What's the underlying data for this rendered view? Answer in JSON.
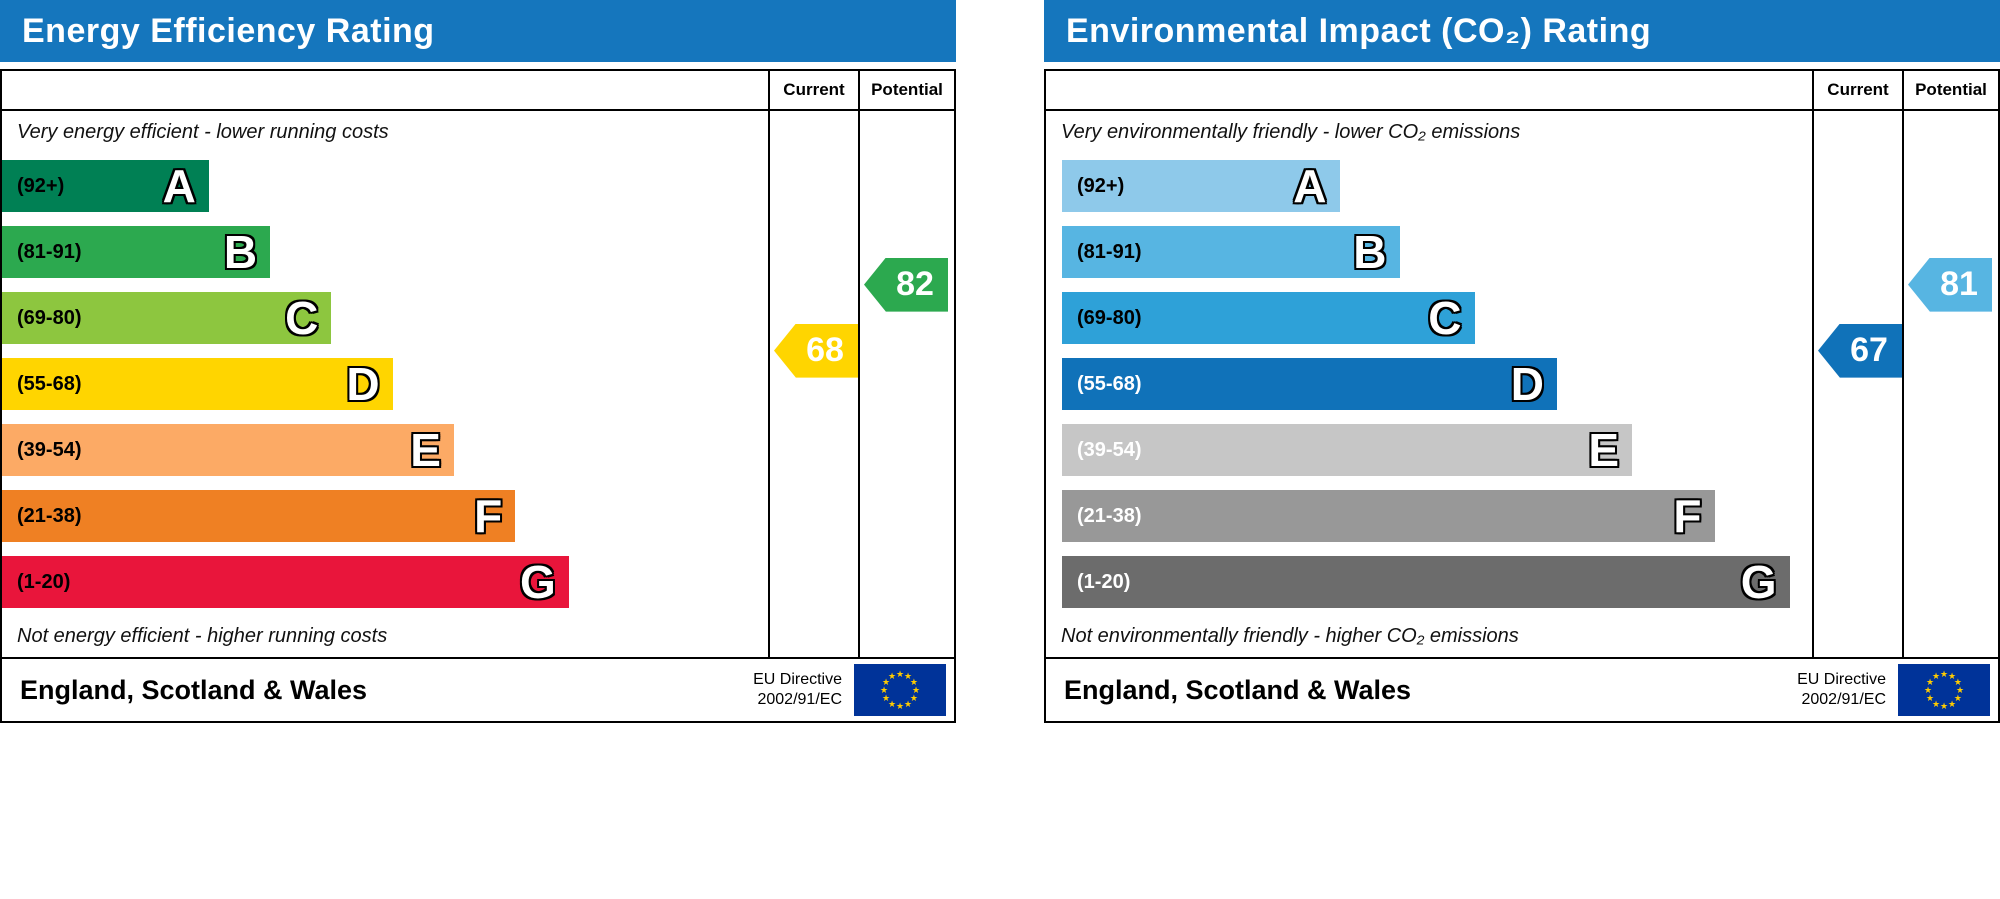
{
  "chart_data": [
    {
      "type": "bar",
      "chart": "energy-efficiency",
      "title": "Energy Efficiency Rating",
      "columns": [
        "Current",
        "Potential"
      ],
      "top_note": "Very energy efficient - lower running costs",
      "bottom_note": "Not energy efficient - higher running costs",
      "bands": [
        {
          "letter": "A",
          "range": "(92+)",
          "min": 92,
          "max": 100,
          "color": "#008054",
          "label_color": "#000000",
          "width": "27%"
        },
        {
          "letter": "B",
          "range": "(81-91)",
          "min": 81,
          "max": 91,
          "color": "#2ca94f",
          "label_color": "#000000",
          "width": "35%"
        },
        {
          "letter": "C",
          "range": "(69-80)",
          "min": 69,
          "max": 80,
          "color": "#8dc63f",
          "label_color": "#000000",
          "width": "43%"
        },
        {
          "letter": "D",
          "range": "(55-68)",
          "min": 55,
          "max": 68,
          "color": "#ffd500",
          "label_color": "#000000",
          "width": "51%"
        },
        {
          "letter": "E",
          "range": "(39-54)",
          "min": 39,
          "max": 54,
          "color": "#fcaa65",
          "label_color": "#000000",
          "width": "59%"
        },
        {
          "letter": "F",
          "range": "(21-38)",
          "min": 21,
          "max": 38,
          "color": "#ef8023",
          "label_color": "#000000",
          "width": "67%"
        },
        {
          "letter": "G",
          "range": "(1-20)",
          "min": 1,
          "max": 20,
          "color": "#e9153b",
          "label_color": "#000000",
          "width": "74%"
        }
      ],
      "current": {
        "value": 68,
        "band": "D",
        "color": "#ffd500",
        "row": 2.6
      },
      "potential": {
        "value": 82,
        "band": "B",
        "color": "#2ca94f",
        "row": 1.6
      },
      "footer": {
        "region": "England, Scotland & Wales",
        "directive_line1": "EU Directive",
        "directive_line2": "2002/91/EC",
        "flag_icon": "eu-flag"
      }
    },
    {
      "type": "bar",
      "chart": "environmental-impact-co2",
      "title": "Environmental Impact (CO₂) Rating",
      "columns": [
        "Current",
        "Potential"
      ],
      "top_note": "Very environmentally friendly - lower CO₂ emissions",
      "bottom_note": "Not environmentally friendly - higher CO₂ emissions",
      "bands": [
        {
          "letter": "A",
          "range": "(92+)",
          "min": 92,
          "max": 100,
          "color": "#8ec9ea",
          "label_color": "#000000",
          "width": "37%"
        },
        {
          "letter": "B",
          "range": "(81-91)",
          "min": 81,
          "max": 91,
          "color": "#57b5e2",
          "label_color": "#000000",
          "width": "45%"
        },
        {
          "letter": "C",
          "range": "(69-80)",
          "min": 69,
          "max": 80,
          "color": "#2ea1d8",
          "label_color": "#000000",
          "width": "55%"
        },
        {
          "letter": "D",
          "range": "(55-68)",
          "min": 55,
          "max": 68,
          "color": "#1072b9",
          "label_color": "#ffffff",
          "width": "66%"
        },
        {
          "letter": "E",
          "range": "(39-54)",
          "min": 39,
          "max": 54,
          "color": "#c6c6c6",
          "label_color": "#ffffff",
          "width": "76%"
        },
        {
          "letter": "F",
          "range": "(21-38)",
          "min": 21,
          "max": 38,
          "color": "#989898",
          "label_color": "#ffffff",
          "width": "87%"
        },
        {
          "letter": "G",
          "range": "(1-20)",
          "min": 1,
          "max": 20,
          "color": "#6c6c6c",
          "label_color": "#ffffff",
          "width": "97%"
        }
      ],
      "current": {
        "value": 67,
        "band": "D",
        "color": "#1072b9",
        "row": 2.6
      },
      "potential": {
        "value": 81,
        "band": "B",
        "color": "#57b5e2",
        "row": 1.6
      },
      "footer": {
        "region": "England, Scotland & Wales",
        "directive_line1": "EU Directive",
        "directive_line2": "2002/91/EC",
        "flag_icon": "eu-flag"
      }
    }
  ]
}
